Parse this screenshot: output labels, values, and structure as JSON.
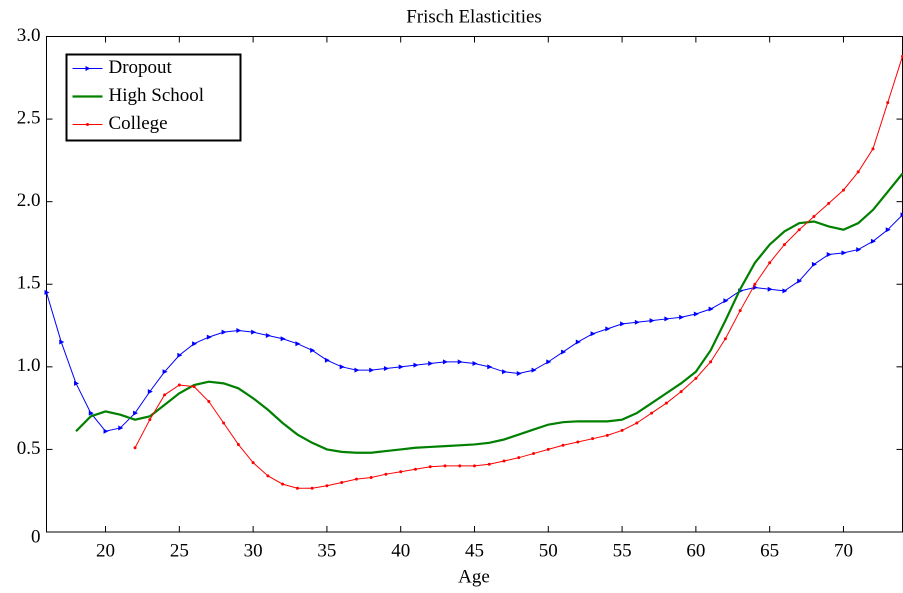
{
  "chart_data": {
    "type": "line",
    "title": "Frisch Elasticities",
    "x_label": "Age",
    "x": [
      16,
      17,
      18,
      19,
      20,
      21,
      22,
      23,
      24,
      25,
      26,
      27,
      28,
      29,
      30,
      31,
      32,
      33,
      34,
      35,
      36,
      37,
      38,
      39,
      40,
      41,
      42,
      43,
      44,
      45,
      46,
      47,
      48,
      49,
      50,
      51,
      52,
      53,
      54,
      55,
      56,
      57,
      58,
      59,
      60,
      61,
      62,
      63,
      64,
      65,
      66,
      67,
      68,
      69,
      70,
      71,
      72,
      73,
      74
    ],
    "series": [
      {
        "name": "Dropout",
        "color": "#0000ff",
        "marker": "triangle",
        "values": [
          1.45,
          1.15,
          0.9,
          0.72,
          0.61,
          0.63,
          0.72,
          0.85,
          0.97,
          1.07,
          1.14,
          1.18,
          1.21,
          1.22,
          1.21,
          1.19,
          1.17,
          1.14,
          1.1,
          1.04,
          1.0,
          0.98,
          0.98,
          0.99,
          1.0,
          1.01,
          1.02,
          1.03,
          1.03,
          1.02,
          1.0,
          0.97,
          0.96,
          0.98,
          1.03,
          1.09,
          1.15,
          1.2,
          1.23,
          1.26,
          1.27,
          1.28,
          1.29,
          1.3,
          1.32,
          1.35,
          1.4,
          1.46,
          1.48,
          1.47,
          1.46,
          1.52,
          1.62,
          1.68,
          1.69,
          1.71,
          1.76,
          1.83,
          1.92
        ]
      },
      {
        "name": "High School",
        "color": "#008000",
        "marker": "none",
        "values": [
          null,
          null,
          0.61,
          0.7,
          0.73,
          0.71,
          0.68,
          0.7,
          0.77,
          0.84,
          0.89,
          0.91,
          0.9,
          0.87,
          0.81,
          0.74,
          0.66,
          0.59,
          0.54,
          0.5,
          0.485,
          0.48,
          0.48,
          0.49,
          0.5,
          0.51,
          0.515,
          0.52,
          0.525,
          0.53,
          0.54,
          0.56,
          0.59,
          0.62,
          0.65,
          0.665,
          0.67,
          0.67,
          0.67,
          0.68,
          0.72,
          0.78,
          0.84,
          0.9,
          0.97,
          1.1,
          1.28,
          1.47,
          1.63,
          1.74,
          1.82,
          1.87,
          1.88,
          1.85,
          1.83,
          1.87,
          1.95,
          2.06,
          2.17
        ]
      },
      {
        "name": "College",
        "color": "#ff0000",
        "marker": "dot",
        "values": [
          null,
          null,
          null,
          null,
          null,
          null,
          0.51,
          0.68,
          0.83,
          0.89,
          0.88,
          0.79,
          0.66,
          0.53,
          0.42,
          0.34,
          0.29,
          0.265,
          0.265,
          0.28,
          0.3,
          0.32,
          0.33,
          0.35,
          0.365,
          0.38,
          0.395,
          0.4,
          0.4,
          0.4,
          0.41,
          0.43,
          0.45,
          0.475,
          0.5,
          0.525,
          0.545,
          0.565,
          0.585,
          0.615,
          0.66,
          0.72,
          0.78,
          0.85,
          0.93,
          1.03,
          1.17,
          1.34,
          1.5,
          1.63,
          1.74,
          1.83,
          1.91,
          1.99,
          2.07,
          2.18,
          2.32,
          2.6,
          2.88
        ]
      }
    ],
    "xlim": [
      16,
      74
    ],
    "xticks": [
      20,
      25,
      30,
      35,
      40,
      45,
      50,
      55,
      60,
      65,
      70
    ],
    "ylim": [
      0,
      3
    ],
    "yticks": [
      0,
      0.5,
      {
        "value": 1,
        "label": "1.0"
      },
      1.5,
      {
        "value": 2,
        "label": "2.0"
      },
      2.5,
      {
        "value": 3,
        "label": "3.0"
      }
    ],
    "grid": false,
    "legend": "upper left"
  }
}
